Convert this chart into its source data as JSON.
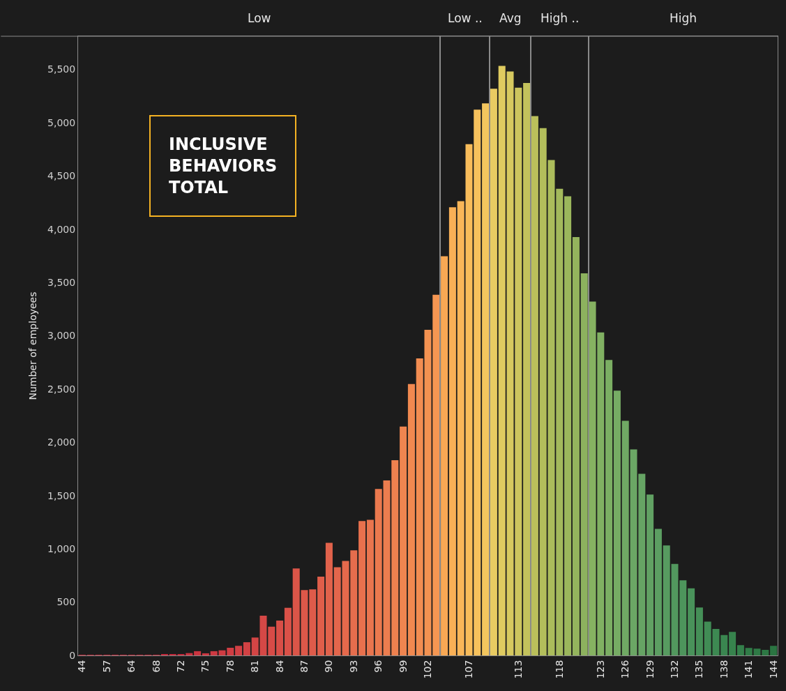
{
  "chart_data": [
    {
      "type": "bar",
      "title": "Low",
      "ylabel": "Number of employees",
      "annotations": [
        "INCLUSIVE\nBEHAVIORS\nTOTAL"
      ],
      "categories": [
        "44",
        null,
        null,
        "57",
        null,
        null,
        "64",
        null,
        null,
        "68",
        null,
        null,
        "72",
        null,
        null,
        "75",
        null,
        null,
        "78",
        null,
        null,
        "81",
        null,
        null,
        "84",
        null,
        null,
        "87",
        null,
        null,
        "90",
        null,
        null,
        "93",
        null,
        null,
        "96",
        null,
        null,
        "99",
        null,
        null,
        "102",
        null
      ],
      "values": [
        2,
        2,
        2,
        2,
        2,
        2,
        2,
        2,
        2,
        5,
        8,
        10,
        10,
        22,
        40,
        20,
        40,
        48,
        72,
        90,
        124,
        168,
        373,
        270,
        327,
        447,
        816,
        613,
        620,
        740,
        1056,
        827,
        886,
        986,
        1261,
        1272,
        1562,
        1643,
        1832,
        2147,
        2546,
        2788,
        3056,
        3384
      ],
      "colors": [
        "#c4283a",
        "#c4283a",
        "#c4283a",
        "#c4283a",
        "#c4283a",
        "#c4283a",
        "#c4283a",
        "#c4283a",
        "#c4283a",
        "#c4283a",
        "#c4283a",
        "#c4283a",
        "#c4283a",
        "#cb3340",
        "#cc3540",
        "#cd3741",
        "#ce3942",
        "#cf3b42",
        "#d03d43",
        "#d14044",
        "#d24244",
        "#d44545",
        "#d54846",
        "#d74b47",
        "#d84e47",
        "#da5148",
        "#db5548",
        "#dd5849",
        "#de5b4a",
        "#e05e4a",
        "#e1624b",
        "#e3664c",
        "#e5694c",
        "#e66d4d",
        "#e8714d",
        "#e9754e",
        "#eb794e",
        "#ec7d4f",
        "#ee814f",
        "#ef8550",
        "#f18950",
        "#f28d51",
        "#f39251",
        "#f59652"
      ],
      "ylim": [
        0,
        5810
      ],
      "yticks": [
        0,
        500,
        {
          "value": 1000,
          "label": "1,000"
        },
        {
          "value": 1500,
          "label": "1,500"
        },
        {
          "value": 2000,
          "label": "2,000"
        },
        {
          "value": 2500,
          "label": "2,500"
        },
        {
          "value": 3000,
          "label": "3,000"
        },
        {
          "value": 3500,
          "label": "3,500"
        },
        {
          "value": 4000,
          "label": "4,000"
        },
        {
          "value": 4500,
          "label": "4,500"
        },
        {
          "value": 5000,
          "label": "5,000"
        },
        {
          "value": 5500,
          "label": "5,500"
        }
      ],
      "grid": false
    },
    {
      "type": "bar",
      "title": "Low ..",
      "categories": [
        null,
        null,
        null,
        "107",
        null,
        null
      ],
      "values": [
        3745,
        4206,
        4262,
        4797,
        5122,
        5181
      ],
      "colors": [
        "#f8a854",
        "#f9b056",
        "#f9b658",
        "#f8bc5a",
        "#f6c15c",
        "#f3c65e"
      ],
      "ylim": [
        0,
        5810
      ],
      "tick_labels": "x",
      "grid": false
    },
    {
      "type": "bar",
      "title": "Avg",
      "categories": [
        null,
        null,
        null,
        "113",
        null
      ],
      "values": [
        5318,
        5532,
        5480,
        5327,
        5371
      ],
      "colors": [
        "#e9cb62",
        "#dfcb60",
        "#d6c95f",
        "#ccc55e",
        "#c3c25c"
      ],
      "ylim": [
        0,
        5810
      ],
      "tick_labels": "x",
      "grid": false
    },
    {
      "type": "bar",
      "title": "High ..",
      "categories": [
        null,
        null,
        null,
        "118",
        null,
        null,
        null
      ],
      "values": [
        5061,
        4948,
        4649,
        4378,
        4308,
        3925,
        3586
      ],
      "colors": [
        "#bbc05b",
        "#b3be5b",
        "#abbc5b",
        "#a3b95c",
        "#9bb75c",
        "#94b45d",
        "#8db25e"
      ],
      "ylim": [
        0,
        5810
      ],
      "tick_labels": "x",
      "grid": false
    },
    {
      "type": "bar",
      "title": "High",
      "categories": [
        null,
        "123",
        null,
        null,
        "126",
        null,
        null,
        "129",
        null,
        null,
        "132",
        null,
        null,
        "135",
        null,
        null,
        "138",
        null,
        null,
        "141",
        null,
        null,
        "144"
      ],
      "values": [
        3320,
        3031,
        2772,
        2484,
        2202,
        1933,
        1704,
        1510,
        1188,
        1032,
        859,
        705,
        630,
        450,
        317,
        249,
        191,
        221,
        96,
        71,
        63,
        52,
        90
      ],
      "colors": [
        "#86b261",
        "#80b062",
        "#7bae63",
        "#76ac64",
        "#70a964",
        "#6ba765",
        "#66a464",
        "#61a163",
        "#5c9e62",
        "#579b60",
        "#52985e",
        "#4d955c",
        "#49925a",
        "#458f57",
        "#418c55",
        "#3d8952",
        "#3a8650",
        "#37834d",
        "#34804b",
        "#317d48",
        "#2f7a46",
        "#2d7844",
        "#2b7542"
      ],
      "ylim": [
        0,
        5810
      ],
      "tick_labels": "x",
      "grid": false
    }
  ]
}
